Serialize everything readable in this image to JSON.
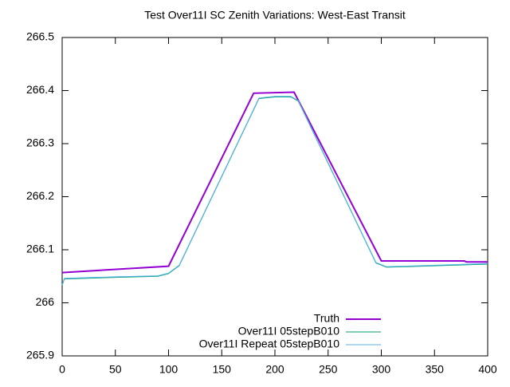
{
  "chart_data": {
    "type": "line",
    "title": "Test Over11I SC Zenith Variations: West-East Transit",
    "xlim": [
      0,
      400
    ],
    "xticks": [
      0,
      50,
      100,
      150,
      200,
      250,
      300,
      350,
      400
    ],
    "ylim": [
      265.9,
      266.5
    ],
    "yticks": [
      265.9,
      266,
      266.1,
      266.2,
      266.3,
      266.4,
      266.5
    ],
    "legend": "bottom right",
    "series": [
      {
        "name": "Truth",
        "color": "#9400d3",
        "x": [
          0,
          100,
          180,
          218,
          300,
          378,
          380,
          400
        ],
        "values": [
          266.057,
          266.069,
          266.395,
          266.397,
          266.079,
          266.079,
          266.077,
          266.077
        ]
      },
      {
        "name": "Over11I 05stepB010",
        "color": "#009e73",
        "x": [
          0,
          2,
          50,
          90,
          100,
          110,
          185,
          200,
          215,
          222,
          295,
          305,
          400
        ],
        "values": [
          266.033,
          266.045,
          266.048,
          266.05,
          266.055,
          266.07,
          266.385,
          266.388,
          266.388,
          266.38,
          266.075,
          266.067,
          266.073
        ]
      },
      {
        "name": "Over11I Repeat 05stepB010",
        "color": "#56b4e9",
        "x": [
          0,
          2,
          50,
          90,
          100,
          110,
          185,
          200,
          215,
          222,
          295,
          305,
          400
        ],
        "values": [
          266.034,
          266.046,
          266.049,
          266.051,
          266.056,
          266.071,
          266.386,
          266.389,
          266.389,
          266.381,
          266.076,
          266.068,
          266.074
        ]
      }
    ]
  }
}
